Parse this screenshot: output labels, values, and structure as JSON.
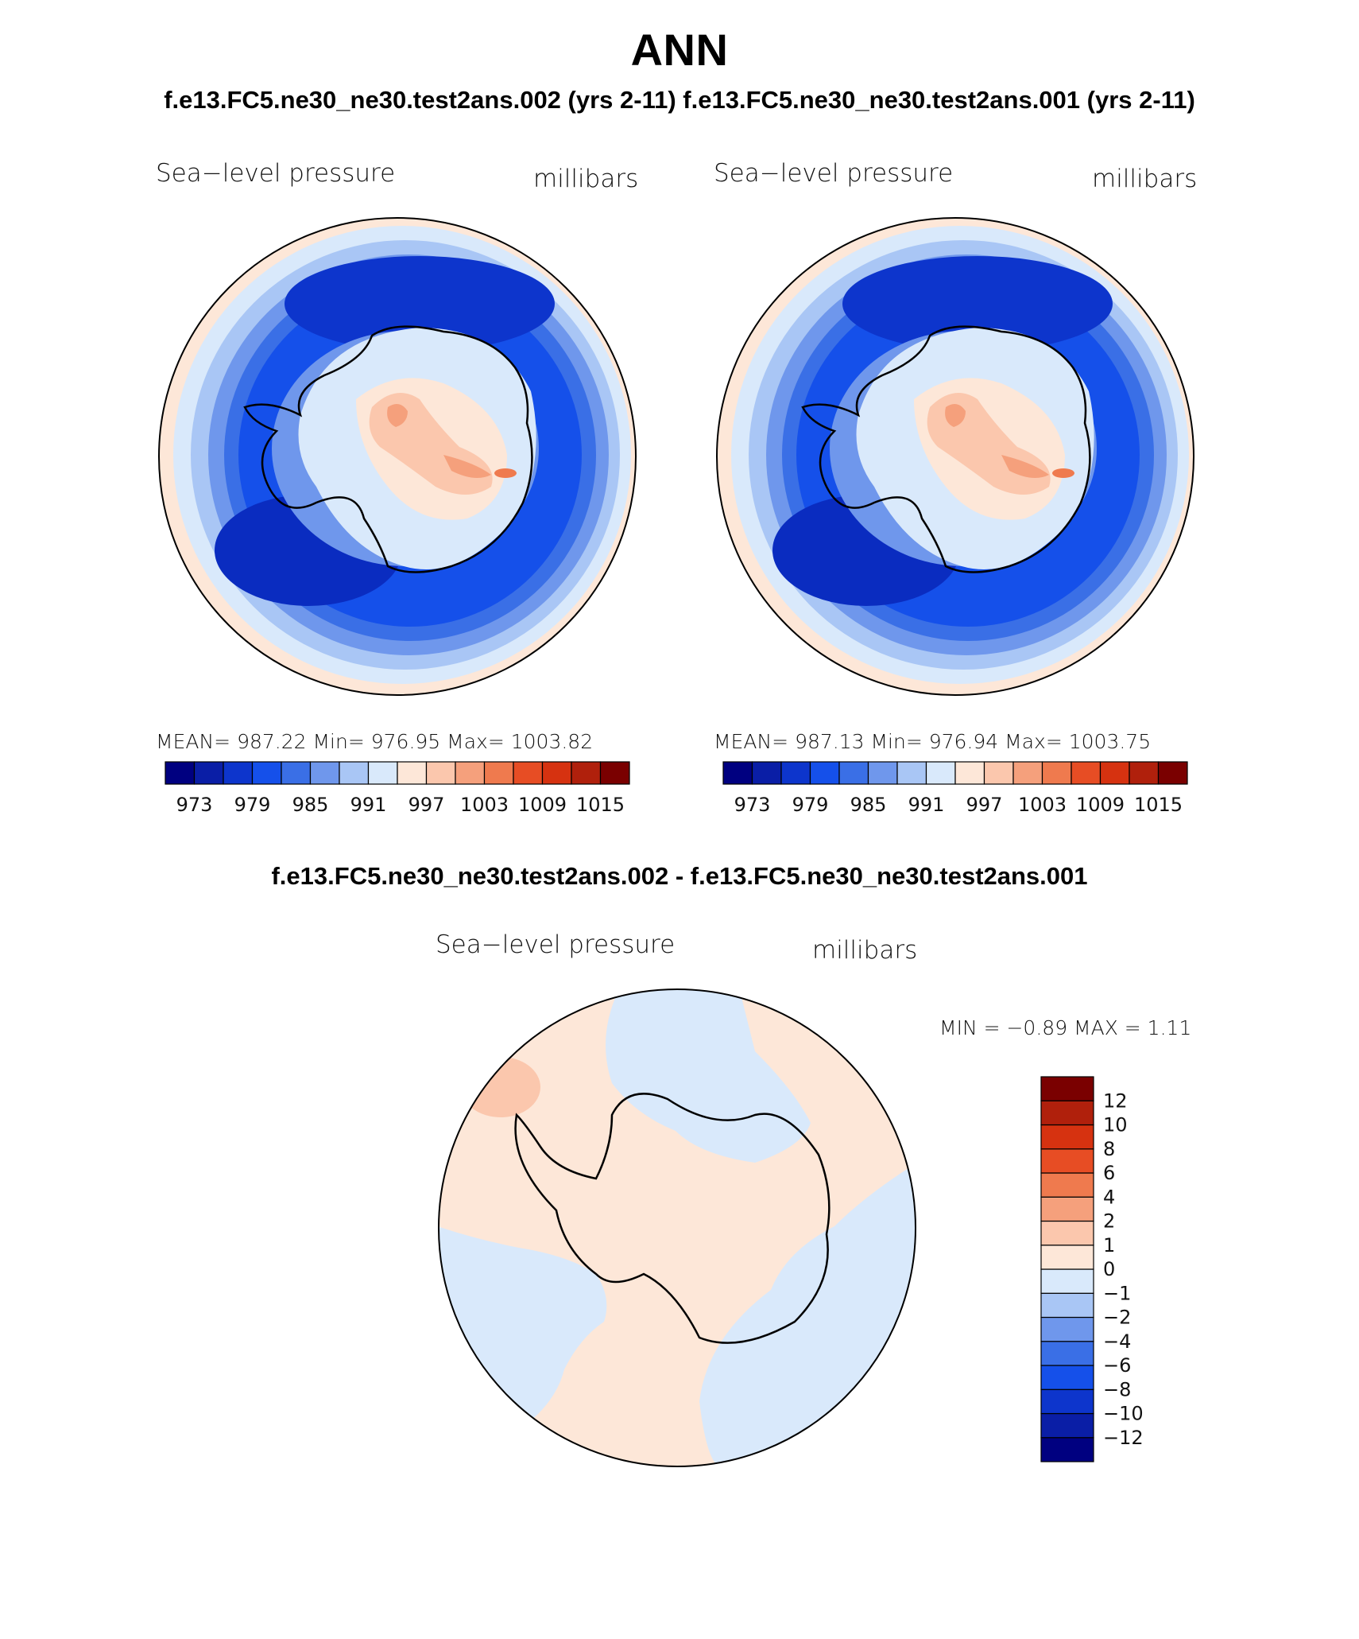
{
  "title": "ANN",
  "top_subtitle": "f.e13.FC5.ne30_ne30.test2ans.002 (yrs 2-11) f.e13.FC5.ne30_ne30.test2ans.001 (yrs 2-11)",
  "diff_subtitle": "f.e13.FC5.ne30_ne30.test2ans.002 - f.e13.FC5.ne30_ne30.test2ans.001",
  "panels": [
    {
      "variable": "Sea−level pressure",
      "units": "millibars",
      "stats": "MEAN= 987.22   Min= 976.95   Max= 1003.82"
    },
    {
      "variable": "Sea−level pressure",
      "units": "millibars",
      "stats": "MEAN= 987.13   Min= 976.94   Max= 1003.75"
    }
  ],
  "diff_panel": {
    "variable": "Sea−level pressure",
    "units": "millibars",
    "stats": "MIN =   −0.89  MAX =    1.11"
  },
  "colorbar_h": {
    "colors": [
      "#000080",
      "#0a1ea6",
      "#0d35cc",
      "#1550ea",
      "#3a6fe6",
      "#6f97ec",
      "#a9c6f5",
      "#d9e9fb",
      "#fde7d8",
      "#fbc7ad",
      "#f5a07c",
      "#ef7a4e",
      "#e74d24",
      "#d63210",
      "#b0200c",
      "#7a0000"
    ],
    "labels": [
      "973",
      "979",
      "985",
      "991",
      "997",
      "1003",
      "1009",
      "1015"
    ]
  },
  "colorbar_v": {
    "colors": [
      "#000080",
      "#0a1ea6",
      "#0d35cc",
      "#1550ea",
      "#3a6fe6",
      "#6f97ec",
      "#a9c6f5",
      "#d9e9fb",
      "#fde7d8",
      "#fbc7ad",
      "#f5a07c",
      "#ef7a4e",
      "#e74d24",
      "#d63210",
      "#b0200c",
      "#7a0000"
    ],
    "labels": [
      "−12",
      "−10",
      "−8",
      "−6",
      "−4",
      "−2",
      "−1",
      "0",
      "1",
      "2",
      "4",
      "6",
      "8",
      "10",
      "12"
    ]
  },
  "map_colors": {
    "outer": "#fde7d8",
    "ring1": "#d9e9fb",
    "ring2": "#a9c6f5",
    "ring3": "#6f97ec",
    "ring4": "#3a6fe6",
    "ring5": "#1550ea",
    "ring6": "#0d35cc",
    "deep": "#0a2cc0",
    "ice1": "#d9e9fb",
    "ice2": "#fde7d8",
    "ice3": "#fbc7ad",
    "ice4": "#f5a07c",
    "ice5": "#ef7a4e",
    "diff_pos": "#fde7d8",
    "diff_neg": "#d9e9fb",
    "diff_hi": "#fbc7ad"
  }
}
